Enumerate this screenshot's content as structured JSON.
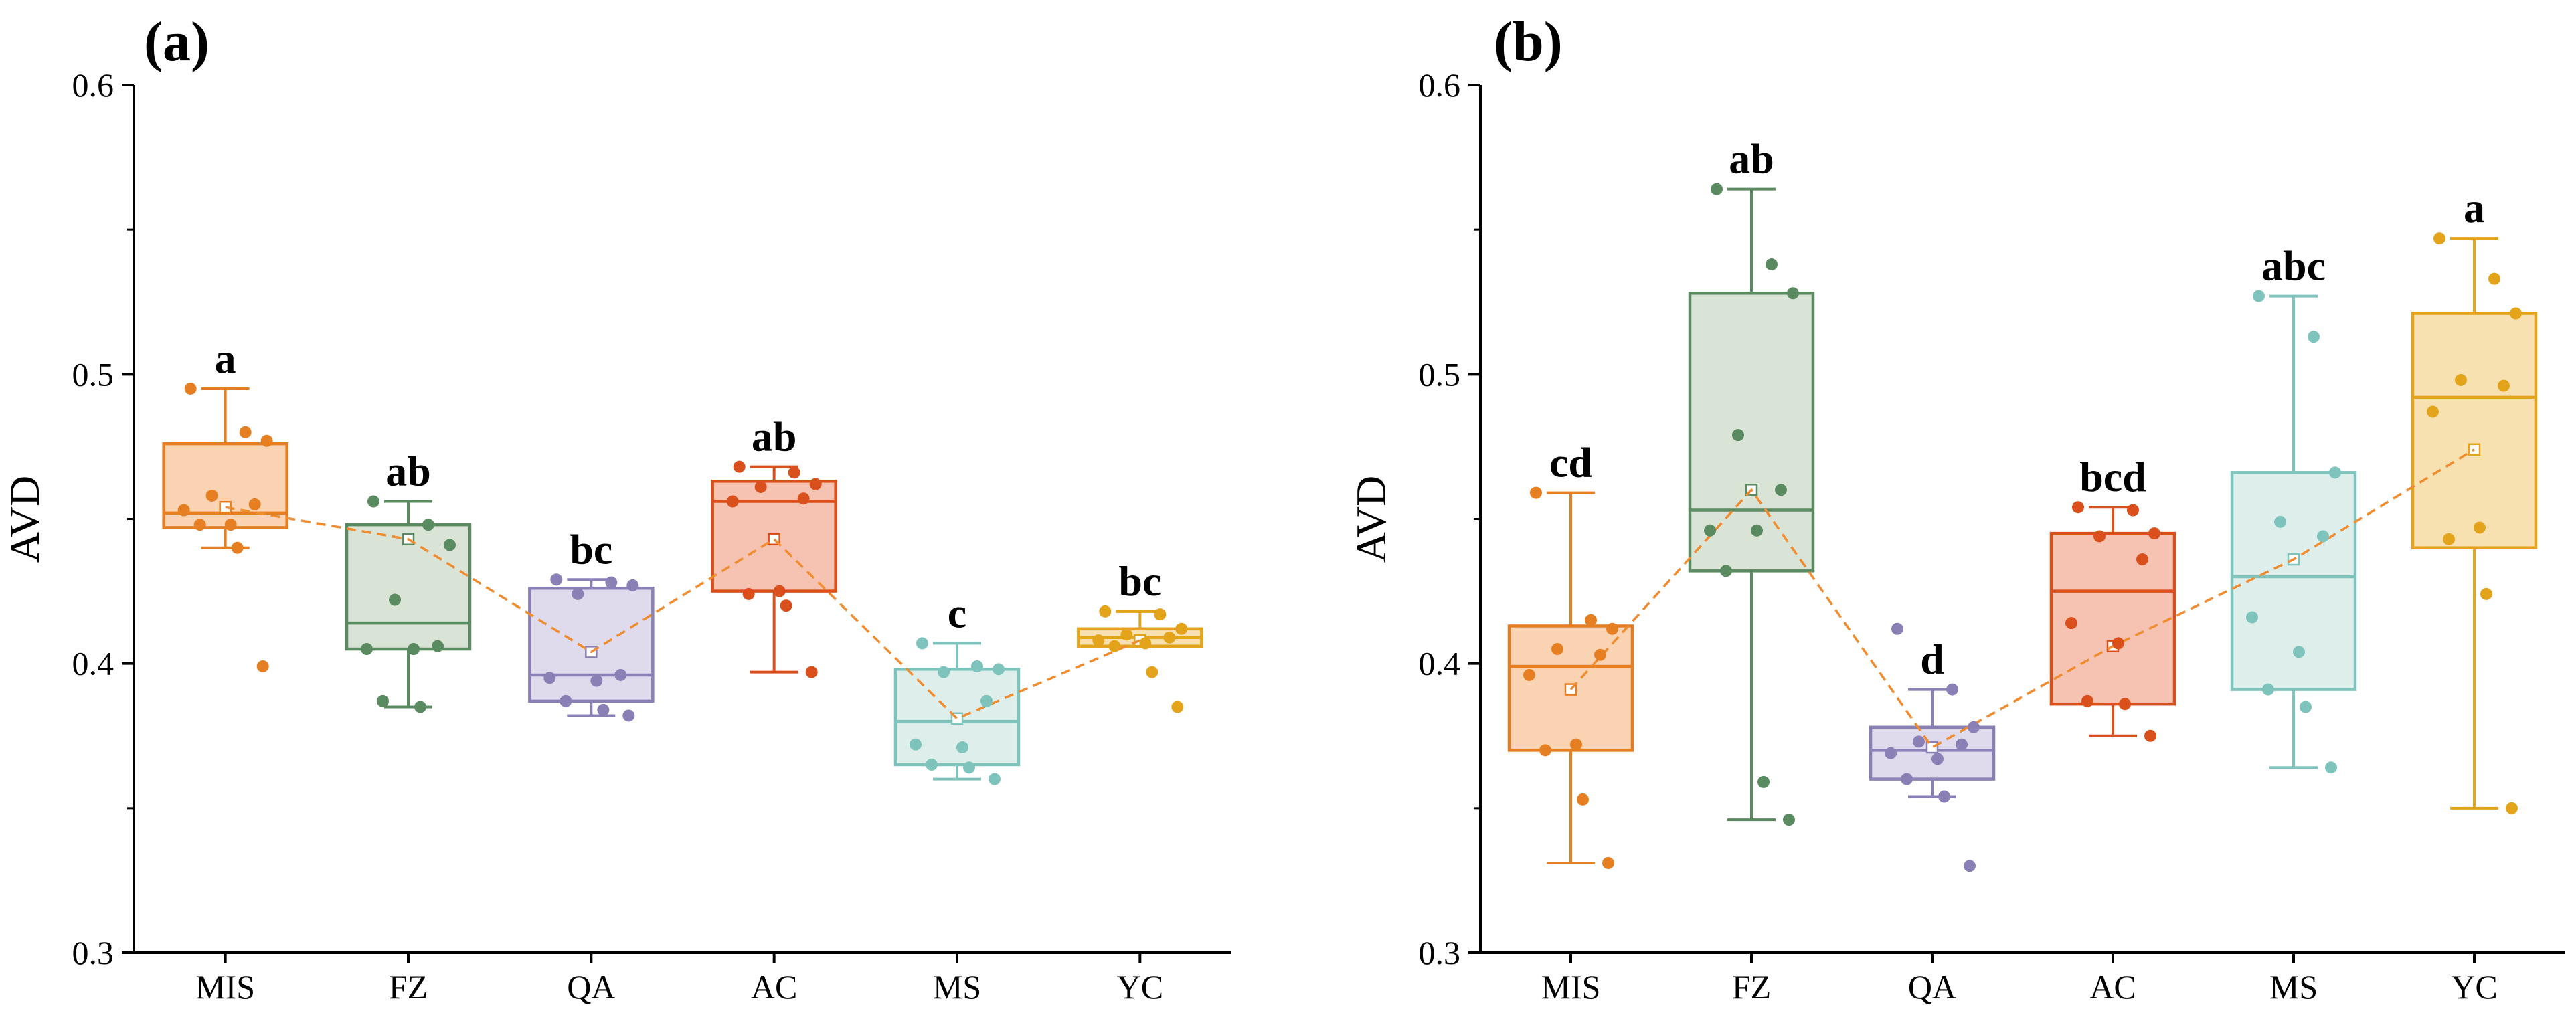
{
  "chart_data": [
    {
      "panel": "(a)",
      "type": "box",
      "ylabel": "AVD",
      "ylim": [
        0.3,
        0.6
      ],
      "yticks": [
        "0.3",
        "0.4",
        "0.5",
        "0.6"
      ],
      "categories": [
        "MIS",
        "FZ",
        "QA",
        "AC",
        "MS",
        "YC"
      ],
      "boxes": [
        {
          "name": "MIS",
          "min": 0.44,
          "q1": 0.447,
          "median": 0.452,
          "q3": 0.476,
          "max": 0.495,
          "mean": 0.454,
          "sig": "a",
          "points": [
            0.495,
            0.48,
            0.477,
            0.458,
            0.455,
            0.453,
            0.448,
            0.448,
            0.44,
            0.399
          ]
        },
        {
          "name": "FZ",
          "min": 0.385,
          "q1": 0.405,
          "median": 0.414,
          "q3": 0.448,
          "max": 0.456,
          "mean": 0.443,
          "sig": "ab",
          "points": [
            0.456,
            0.448,
            0.441,
            0.422,
            0.406,
            0.405,
            0.405,
            0.387,
            0.385
          ]
        },
        {
          "name": "QA",
          "min": 0.382,
          "q1": 0.387,
          "median": 0.396,
          "q3": 0.426,
          "max": 0.429,
          "mean": 0.404,
          "sig": "bc",
          "points": [
            0.429,
            0.428,
            0.427,
            0.424,
            0.396,
            0.395,
            0.394,
            0.387,
            0.384,
            0.382
          ]
        },
        {
          "name": "AC",
          "min": 0.397,
          "q1": 0.425,
          "median": 0.456,
          "q3": 0.463,
          "max": 0.468,
          "mean": 0.443,
          "sig": "ab",
          "points": [
            0.468,
            0.466,
            0.462,
            0.461,
            0.457,
            0.456,
            0.425,
            0.424,
            0.42,
            0.397
          ]
        },
        {
          "name": "MS",
          "min": 0.36,
          "q1": 0.365,
          "median": 0.38,
          "q3": 0.398,
          "max": 0.407,
          "mean": 0.381,
          "sig": "c",
          "points": [
            0.407,
            0.399,
            0.398,
            0.397,
            0.387,
            0.372,
            0.371,
            0.365,
            0.364,
            0.36
          ]
        },
        {
          "name": "YC",
          "min": 0.406,
          "q1": 0.406,
          "median": 0.409,
          "q3": 0.412,
          "max": 0.418,
          "mean": 0.408,
          "sig": "bc",
          "points": [
            0.418,
            0.417,
            0.412,
            0.41,
            0.409,
            0.408,
            0.407,
            0.406,
            0.397,
            0.385
          ]
        }
      ]
    },
    {
      "panel": "(b)",
      "type": "box",
      "ylabel": "AVD",
      "ylim": [
        0.3,
        0.6
      ],
      "yticks": [
        "0.3",
        "0.4",
        "0.5",
        "0.6"
      ],
      "categories": [
        "MIS",
        "FZ",
        "QA",
        "AC",
        "MS",
        "YC"
      ],
      "boxes": [
        {
          "name": "MIS",
          "min": 0.331,
          "q1": 0.37,
          "median": 0.399,
          "q3": 0.413,
          "max": 0.459,
          "mean": 0.391,
          "sig": "cd",
          "points": [
            0.459,
            0.415,
            0.412,
            0.405,
            0.403,
            0.396,
            0.372,
            0.37,
            0.353,
            0.331
          ]
        },
        {
          "name": "FZ",
          "min": 0.346,
          "q1": 0.432,
          "median": 0.453,
          "q3": 0.528,
          "max": 0.564,
          "mean": 0.46,
          "sig": "ab",
          "points": [
            0.564,
            0.538,
            0.528,
            0.479,
            0.46,
            0.446,
            0.446,
            0.432,
            0.359,
            0.346
          ]
        },
        {
          "name": "QA",
          "min": 0.354,
          "q1": 0.36,
          "median": 0.37,
          "q3": 0.378,
          "max": 0.391,
          "mean": 0.371,
          "sig": "d",
          "points": [
            0.412,
            0.391,
            0.378,
            0.373,
            0.372,
            0.369,
            0.367,
            0.36,
            0.354,
            0.33
          ]
        },
        {
          "name": "AC",
          "min": 0.375,
          "q1": 0.386,
          "median": 0.425,
          "q3": 0.445,
          "max": 0.454,
          "mean": 0.406,
          "sig": "bcd",
          "points": [
            0.454,
            0.453,
            0.445,
            0.444,
            0.436,
            0.414,
            0.407,
            0.387,
            0.386,
            0.375
          ]
        },
        {
          "name": "MS",
          "min": 0.364,
          "q1": 0.391,
          "median": 0.43,
          "q3": 0.466,
          "max": 0.527,
          "mean": 0.436,
          "sig": "abc",
          "points": [
            0.527,
            0.513,
            0.466,
            0.449,
            0.444,
            0.416,
            0.404,
            0.391,
            0.385,
            0.364
          ]
        },
        {
          "name": "YC",
          "min": 0.35,
          "q1": 0.44,
          "median": 0.492,
          "q3": 0.521,
          "max": 0.547,
          "mean": 0.474,
          "sig": "a",
          "points": [
            0.547,
            0.533,
            0.521,
            0.498,
            0.496,
            0.487,
            0.447,
            0.443,
            0.424,
            0.35
          ]
        }
      ]
    }
  ],
  "colors": {
    "MIS": {
      "stroke": "#e67e22",
      "fill": "#f8cba4",
      "point": "#e67e22"
    },
    "FZ": {
      "stroke": "#5a8a60",
      "fill": "#d2dfcf",
      "point": "#5a8a60"
    },
    "QA": {
      "stroke": "#8b80b5",
      "fill": "#d9d5ea",
      "point": "#8b80b5"
    },
    "AC": {
      "stroke": "#d9501c",
      "fill": "#f4b9a4",
      "point": "#d9501c"
    },
    "MS": {
      "stroke": "#7fc4bc",
      "fill": "#d7ebe8",
      "point": "#7fc4bc"
    },
    "YC": {
      "stroke": "#e3a31b",
      "fill": "#f7dca2",
      "point": "#e3a31b"
    },
    "mean_line": "#f08c30"
  }
}
